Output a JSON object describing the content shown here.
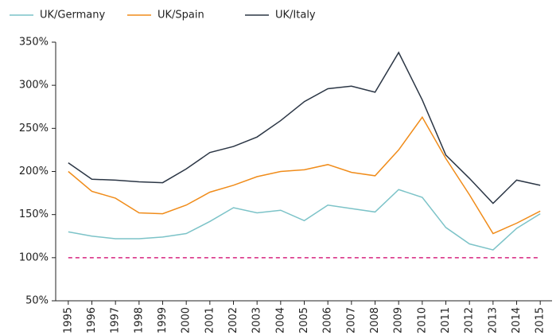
{
  "chart_data": {
    "type": "line",
    "categories": [
      "1995",
      "1996",
      "1997",
      "1998",
      "1999",
      "2000",
      "2001",
      "2002",
      "2003",
      "2004",
      "2005",
      "2006",
      "2007",
      "2008",
      "2009",
      "2010",
      "2011",
      "2012",
      "2013",
      "2014",
      "2015"
    ],
    "series": [
      {
        "name": "UK/Germany",
        "color": "#7cc3c8",
        "values": [
          130,
          125,
          122,
          122,
          124,
          128,
          142,
          158,
          152,
          155,
          143,
          161,
          157,
          153,
          179,
          170,
          135,
          116,
          109,
          134,
          151
        ]
      },
      {
        "name": "UK/Spain",
        "color": "#f08c1a",
        "values": [
          200,
          177,
          169,
          152,
          151,
          161,
          176,
          184,
          194,
          200,
          202,
          208,
          199,
          195,
          225,
          263,
          215,
          173,
          128,
          140,
          154
        ]
      },
      {
        "name": "UK/Italy",
        "color": "#2b3645",
        "values": [
          210,
          191,
          190,
          188,
          187,
          203,
          222,
          229,
          240,
          259,
          281,
          296,
          299,
          292,
          338,
          283,
          219,
          192,
          163,
          190,
          184
        ]
      }
    ],
    "reference_line": {
      "value": 100,
      "color": "#d6237f"
    },
    "ylim": [
      50,
      350
    ],
    "yticks": [
      {
        "value": 50,
        "label": "50%"
      },
      {
        "value": 100,
        "label": "100%"
      },
      {
        "value": 150,
        "label": "150%"
      },
      {
        "value": 200,
        "label": "200%"
      },
      {
        "value": 250,
        "label": "250%"
      },
      {
        "value": 300,
        "label": "300%"
      },
      {
        "value": 350,
        "label": "350%"
      }
    ],
    "legend": "top-left",
    "grid": false
  }
}
